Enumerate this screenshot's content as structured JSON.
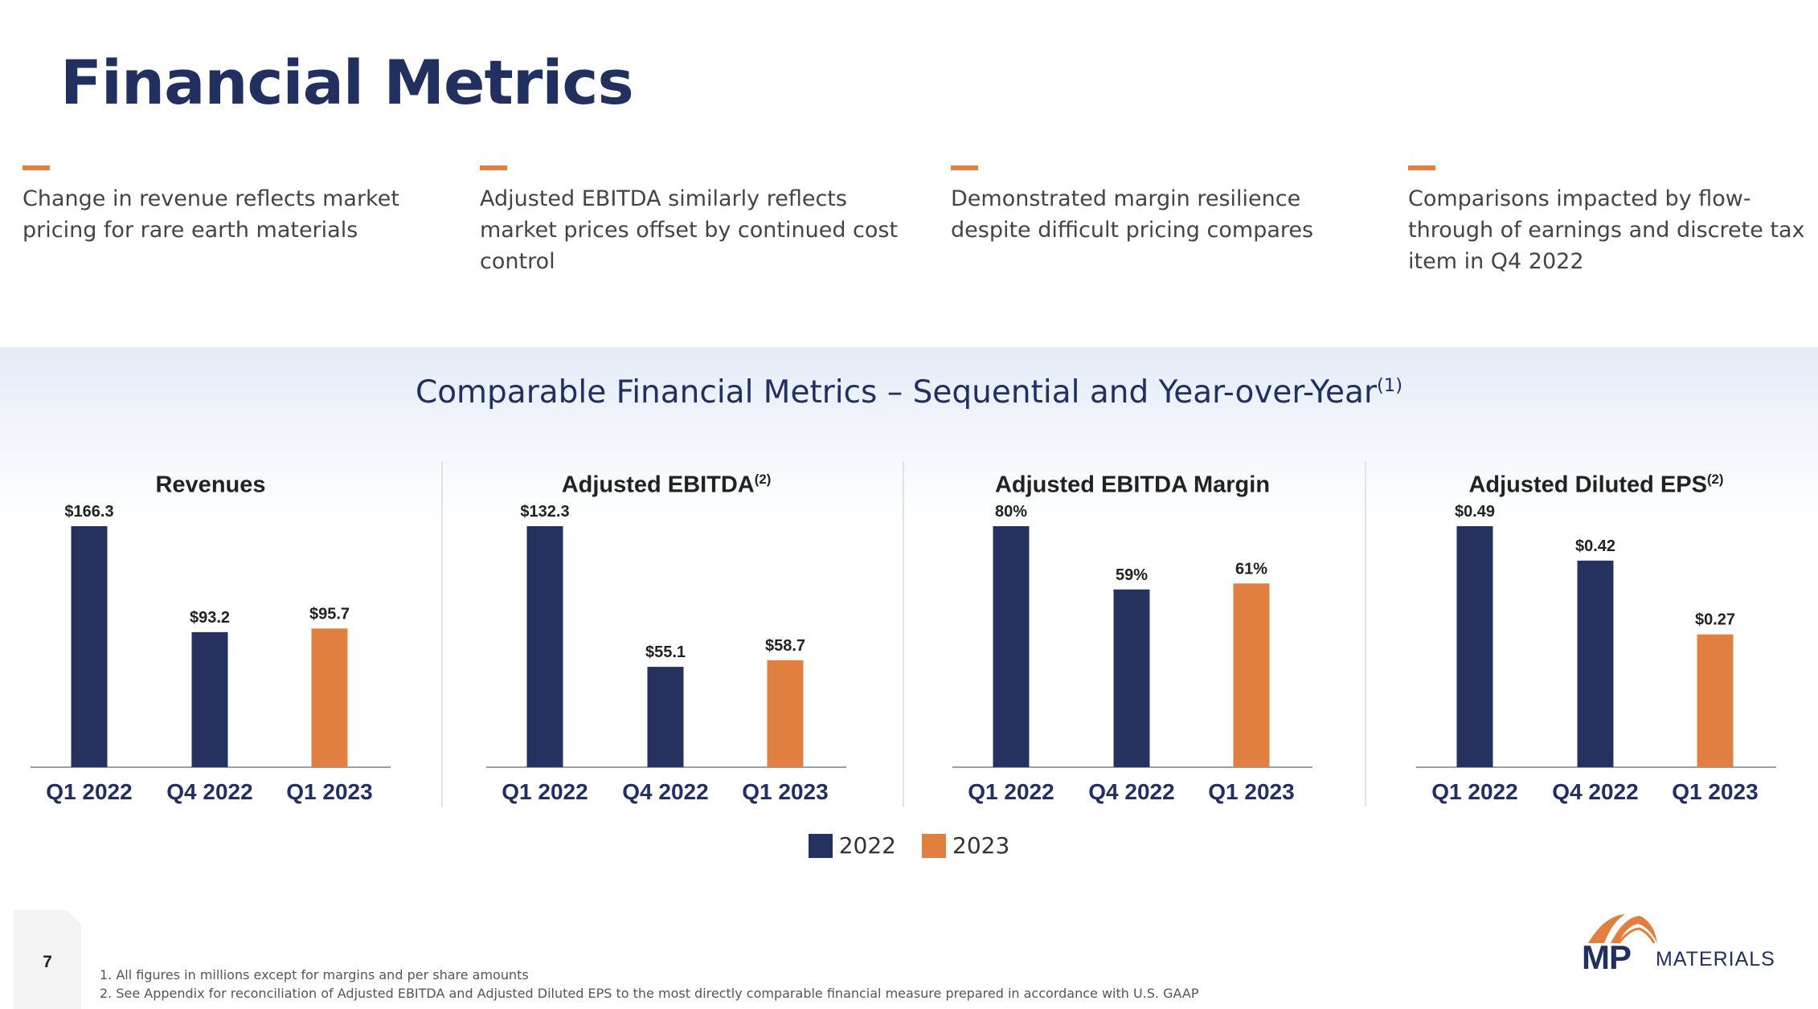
{
  "page_title": "Financial Metrics",
  "takeaways": [
    {
      "text": "Change in revenue reflects market pricing for rare earth materials"
    },
    {
      "text": "Adjusted EBITDA similarly reflects market prices offset by continued cost control"
    },
    {
      "text": "Demonstrated margin resilience despite difficult pricing compares"
    },
    {
      "text": "Comparisons impacted by flow-through of earnings and discrete tax item in Q4 2022"
    }
  ],
  "section_title": "Comparable Financial Metrics – Sequential and Year-over-Year",
  "section_title_sup": "(1)",
  "colors": {
    "navy": "#25315f",
    "orange": "#e07f3f",
    "title": "#22305f",
    "axis": "#9aa0aa"
  },
  "chart_data": [
    {
      "type": "bar",
      "title": "Revenues",
      "title_sup": "",
      "categories": [
        "Q1 2022",
        "Q4 2022",
        "Q1 2023"
      ],
      "values": [
        166.3,
        93.2,
        95.7
      ],
      "value_labels": [
        "$166.3",
        "$93.2",
        "$95.7"
      ],
      "series_of_bar": [
        "2022",
        "2022",
        "2023"
      ],
      "ylim": [
        0,
        166.3
      ]
    },
    {
      "type": "bar",
      "title": "Adjusted EBITDA",
      "title_sup": "(2)",
      "categories": [
        "Q1 2022",
        "Q4 2022",
        "Q1 2023"
      ],
      "values": [
        132.3,
        55.1,
        58.7
      ],
      "value_labels": [
        "$132.3",
        "$55.1",
        "$58.7"
      ],
      "series_of_bar": [
        "2022",
        "2022",
        "2023"
      ],
      "ylim": [
        0,
        132.3
      ]
    },
    {
      "type": "bar",
      "title": "Adjusted EBITDA Margin",
      "title_sup": "",
      "categories": [
        "Q1 2022",
        "Q4 2022",
        "Q1 2023"
      ],
      "values": [
        80,
        59,
        61
      ],
      "value_labels": [
        "80%",
        "59%",
        "61%"
      ],
      "series_of_bar": [
        "2022",
        "2022",
        "2023"
      ],
      "ylim": [
        0,
        80
      ]
    },
    {
      "type": "bar",
      "title": "Adjusted Diluted EPS",
      "title_sup": "(2)",
      "categories": [
        "Q1 2022",
        "Q4 2022",
        "Q1 2023"
      ],
      "values": [
        0.49,
        0.42,
        0.27
      ],
      "value_labels": [
        "$0.49",
        "$0.42",
        "$0.27"
      ],
      "series_of_bar": [
        "2022",
        "2022",
        "2023"
      ],
      "ylim": [
        0,
        0.49
      ]
    }
  ],
  "legend": [
    {
      "label": "2022",
      "color": "#25315f"
    },
    {
      "label": "2023",
      "color": "#e07f3f"
    }
  ],
  "page_number": "7",
  "footnotes": [
    "1.  All figures in millions except for margins and per share amounts",
    "2.  See Appendix for reconciliation of Adjusted EBITDA and Adjusted Diluted EPS to the most directly comparable financial measure prepared in accordance with U.S. GAAP"
  ],
  "logo": {
    "mp": "MP",
    "word": "MATERIALS"
  }
}
